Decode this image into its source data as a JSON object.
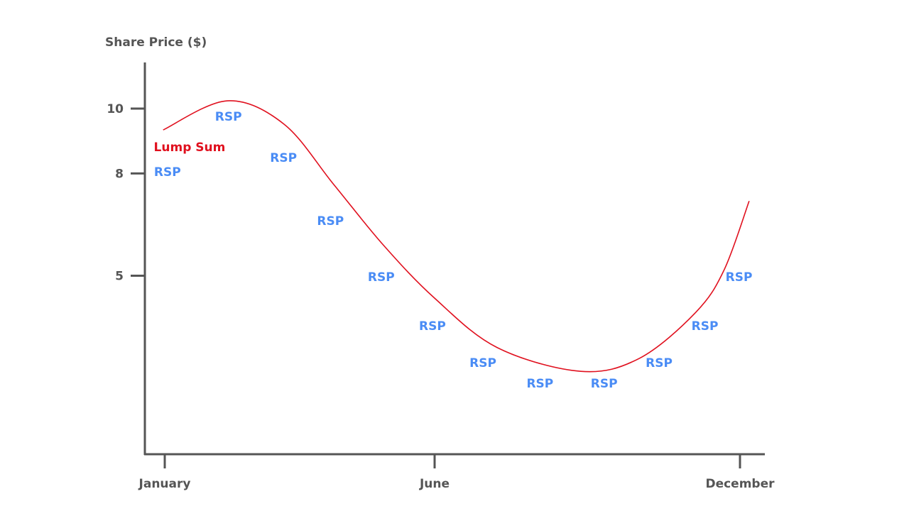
{
  "chart_data": {
    "type": "line",
    "title": "",
    "ylabel": "Share Price ($)",
    "xlabel": "",
    "x_ticks": [
      {
        "label": "January",
        "month": 1
      },
      {
        "label": "June",
        "month": 6
      },
      {
        "label": "December",
        "month": 12
      }
    ],
    "y_ticks": [
      {
        "label": "10",
        "value": 10
      },
      {
        "label": "8",
        "value": 8
      },
      {
        "label": "5",
        "value": 5
      }
    ],
    "ylim": [
      -0.2,
      11.4
    ],
    "xlim": [
      0.6,
      12.5
    ],
    "grid": false,
    "series": [
      {
        "name": "Lump Sum",
        "color": "#e0101e",
        "x": [
          0.97,
          2.16,
          3.21,
          4.13,
          5.05,
          6.0,
          7.23,
          8.87,
          10.02,
          11.13,
          11.69,
          12.18
        ],
        "y": [
          9.37,
          10.23,
          9.54,
          7.76,
          5.97,
          4.4,
          2.94,
          2.24,
          2.62,
          3.98,
          5.24,
          7.27
        ]
      }
    ],
    "annotations": [
      {
        "text": "Lump Sum",
        "month": 1.46,
        "price": 8.87,
        "color": "#e0101e"
      },
      {
        "text": "RSP",
        "month": 1.05,
        "price": 8.13,
        "color": "#4a8cf5"
      },
      {
        "text": "RSP",
        "month": 2.18,
        "price": 9.77,
        "color": "#4a8cf5"
      },
      {
        "text": "RSP",
        "month": 3.2,
        "price": 8.55,
        "color": "#4a8cf5"
      },
      {
        "text": "RSP",
        "month": 4.07,
        "price": 6.69,
        "color": "#4a8cf5"
      },
      {
        "text": "RSP",
        "month": 5.01,
        "price": 5.03,
        "color": "#4a8cf5"
      },
      {
        "text": "RSP",
        "month": 5.96,
        "price": 3.58,
        "color": "#4a8cf5"
      },
      {
        "text": "RSP",
        "month": 6.95,
        "price": 2.49,
        "color": "#4a8cf5"
      },
      {
        "text": "RSP",
        "month": 8.07,
        "price": 1.89,
        "color": "#4a8cf5"
      },
      {
        "text": "RSP",
        "month": 9.33,
        "price": 1.89,
        "color": "#4a8cf5"
      },
      {
        "text": "RSP",
        "month": 10.41,
        "price": 2.49,
        "color": "#4a8cf5"
      },
      {
        "text": "RSP",
        "month": 11.31,
        "price": 3.58,
        "color": "#4a8cf5"
      },
      {
        "text": "RSP",
        "month": 11.98,
        "price": 5.03,
        "color": "#4a8cf5"
      }
    ]
  }
}
